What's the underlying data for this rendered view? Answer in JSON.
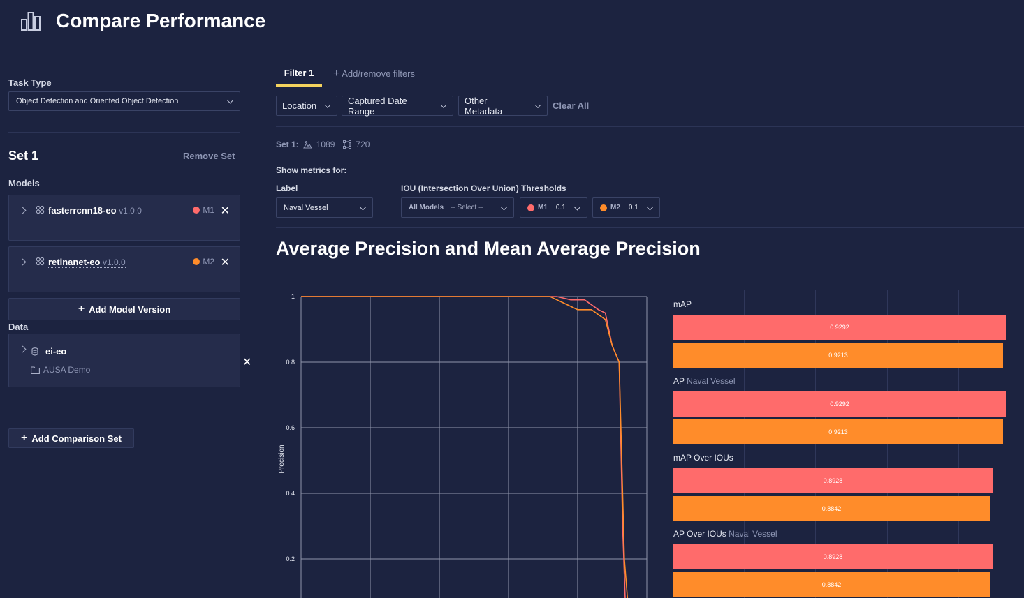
{
  "header": {
    "title": "Compare Performance",
    "logo_icon": "bar-chart-icon"
  },
  "sidebar": {
    "task_type_label": "Task Type",
    "task_type_value": "Object Detection and Oriented Object Detection",
    "set_title": "Set 1",
    "remove_set": "Remove Set",
    "models_label": "Models",
    "models": [
      {
        "name": "fasterrcnn18-eo",
        "version": "v1.0.0",
        "badge": "M1",
        "color": "#ff6b6b"
      },
      {
        "name": "retinanet-eo",
        "version": "v1.0.0",
        "badge": "M2",
        "color": "#ff8c2a"
      }
    ],
    "add_model_version": "Add Model Version",
    "data_label": "Data",
    "dataset": {
      "name": "ei-eo",
      "folder": "AUSA Demo"
    },
    "add_comparison_set": "Add Comparison Set"
  },
  "filters": {
    "active_tab": "Filter 1",
    "add_remove": "Add/remove filters",
    "buttons": [
      "Location",
      "Captured Date Range",
      "Other Metadata"
    ],
    "clear_all": "Clear All"
  },
  "set_info": {
    "label": "Set 1:",
    "images": "1089",
    "annotations": "720"
  },
  "metrics": {
    "show_for": "Show metrics for:",
    "label_title": "Label",
    "label_value": "Naval Vessel",
    "iou_title": "IOU (Intersection Over Union) Thresholds",
    "all_models": "All Models",
    "select_placeholder": "-- Select --",
    "m1_badge": "M1",
    "m1_value": "0.1",
    "m2_badge": "M2",
    "m2_value": "0.1"
  },
  "section_title": "Average Precision and Mean Average Precision",
  "chart_data": [
    {
      "type": "line",
      "ylabel": "Precision",
      "xlabel": "",
      "ylim": [
        0,
        1
      ],
      "y_ticks": [
        "1",
        "0.8",
        "0.6",
        "0.4",
        "0.2"
      ],
      "grid": true,
      "series": [
        {
          "color": "#ff6b6b",
          "x": [
            0,
            0.74,
            0.78,
            0.82,
            0.86,
            0.88,
            0.9,
            0.92,
            0.93,
            0.94
          ],
          "y": [
            1,
            1,
            0.99,
            0.99,
            0.96,
            0.95,
            0.85,
            0.8,
            0.3,
            0
          ]
        },
        {
          "color": "#ff8c2a",
          "x": [
            0,
            0.72,
            0.76,
            0.8,
            0.84,
            0.88,
            0.9,
            0.92,
            0.935,
            0.95
          ],
          "y": [
            1,
            1,
            0.98,
            0.96,
            0.96,
            0.93,
            0.85,
            0.8,
            0.2,
            0
          ]
        }
      ]
    },
    {
      "type": "bar",
      "orientation": "horizontal",
      "xlim": [
        0,
        1
      ],
      "groups": [
        {
          "label": "mAP",
          "sub": "",
          "values": [
            0.9292,
            0.9213
          ],
          "labels": [
            "0.9292",
            "0.9213"
          ]
        },
        {
          "label": "AP",
          "sub": "Naval Vessel",
          "values": [
            0.9292,
            0.9213
          ],
          "labels": [
            "0.9292",
            "0.9213"
          ]
        },
        {
          "label": "mAP Over IOUs",
          "sub": "",
          "values": [
            0.8928,
            0.8842
          ],
          "labels": [
            "0.8928",
            "0.8842"
          ]
        },
        {
          "label": "AP Over IOUs",
          "sub": "Naval Vessel",
          "values": [
            0.8928,
            0.8842
          ],
          "labels": [
            "0.8928",
            "0.8842"
          ]
        }
      ],
      "colors": [
        "#ff6b6b",
        "#ff8c2a"
      ]
    }
  ]
}
